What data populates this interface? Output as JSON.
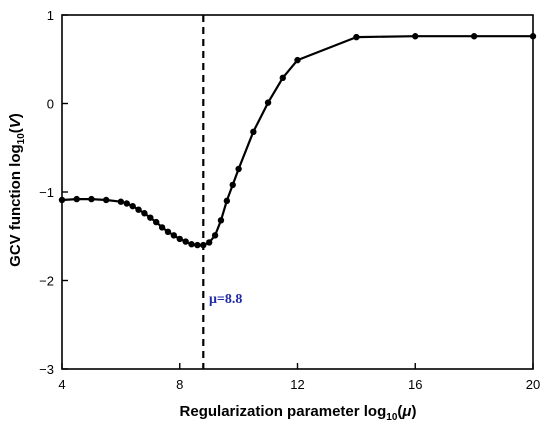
{
  "chart_data": {
    "type": "line",
    "xlabel": {
      "pre": "Regularization parameter log",
      "sub": "10",
      "open": "(",
      "var": "μ",
      "close": ")"
    },
    "ylabel": {
      "pre": "GCV function log",
      "sub": "10",
      "open": "(",
      "var": "V",
      "close": ")"
    },
    "xlim": [
      4,
      20
    ],
    "ylim": [
      -3,
      1
    ],
    "xticks": [
      4,
      8,
      12,
      16,
      20
    ],
    "xtick_labels": [
      "4",
      "8",
      "12",
      "16",
      "20"
    ],
    "yticks": [
      -3,
      -2,
      -1,
      0,
      1
    ],
    "ytick_labels": [
      "−3",
      "−2",
      "−1",
      "0",
      "1"
    ],
    "series": [
      {
        "x": [
          4.0,
          4.5,
          5.0,
          5.5,
          6.0,
          6.2,
          6.4,
          6.6,
          6.8,
          7.0,
          7.2,
          7.4,
          7.6,
          7.8,
          8.0,
          8.2,
          8.4,
          8.6,
          8.8,
          9.0,
          9.2,
          9.4,
          9.6,
          9.8,
          10.0,
          10.5,
          11.0,
          11.5,
          12.0,
          14.0,
          16.0,
          18.0,
          20.0
        ],
        "y": [
          -1.09,
          -1.08,
          -1.08,
          -1.09,
          -1.11,
          -1.13,
          -1.16,
          -1.2,
          -1.24,
          -1.29,
          -1.34,
          -1.4,
          -1.45,
          -1.49,
          -1.53,
          -1.56,
          -1.59,
          -1.6,
          -1.6,
          -1.57,
          -1.49,
          -1.32,
          -1.1,
          -0.92,
          -0.74,
          -0.32,
          0.01,
          0.29,
          0.49,
          0.75,
          0.76,
          0.76,
          0.76
        ],
        "color": "#000000"
      }
    ],
    "vline": {
      "x": 8.8,
      "label": "μ=8.8",
      "color": "#000000",
      "label_color": "#1f2aa6"
    }
  }
}
